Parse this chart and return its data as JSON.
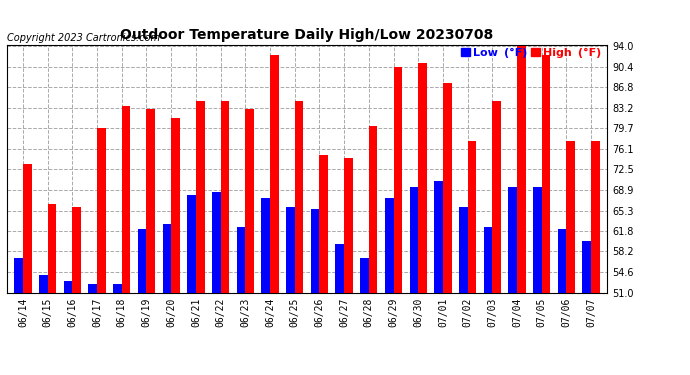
{
  "title": "Outdoor Temperature Daily High/Low 20230708",
  "copyright": "Copyright 2023 Cartronics.com",
  "legend_low": "Low  (°F)",
  "legend_high": "High  (°F)",
  "dates": [
    "06/14",
    "06/15",
    "06/16",
    "06/17",
    "06/18",
    "06/19",
    "06/20",
    "06/21",
    "06/22",
    "06/23",
    "06/24",
    "06/25",
    "06/26",
    "06/27",
    "06/28",
    "06/29",
    "06/30",
    "07/01",
    "07/02",
    "07/03",
    "07/04",
    "07/05",
    "07/06",
    "07/07"
  ],
  "high": [
    73.5,
    66.5,
    66.0,
    79.7,
    83.5,
    83.0,
    81.5,
    84.5,
    84.5,
    83.0,
    92.5,
    84.5,
    75.0,
    74.5,
    80.0,
    90.4,
    91.0,
    87.5,
    77.5,
    84.5,
    94.0,
    92.5,
    77.5,
    77.5
  ],
  "low": [
    57.0,
    54.0,
    53.0,
    52.5,
    52.5,
    62.0,
    63.0,
    68.0,
    68.5,
    62.5,
    67.5,
    66.0,
    65.5,
    59.5,
    57.0,
    67.5,
    69.5,
    70.5,
    66.0,
    62.5,
    69.5,
    69.5,
    62.0,
    60.0
  ],
  "ylim_min": 51.0,
  "ylim_max": 94.0,
  "yticks": [
    51.0,
    54.6,
    58.2,
    61.8,
    65.3,
    68.9,
    72.5,
    76.1,
    79.7,
    83.2,
    86.8,
    90.4,
    94.0
  ],
  "high_color": "#ff0000",
  "low_color": "#0000ff",
  "bg_color": "#ffffff",
  "grid_color": "#aaaaaa",
  "title_fontsize": 10,
  "copyright_fontsize": 7,
  "tick_fontsize": 7,
  "bar_width": 0.35
}
